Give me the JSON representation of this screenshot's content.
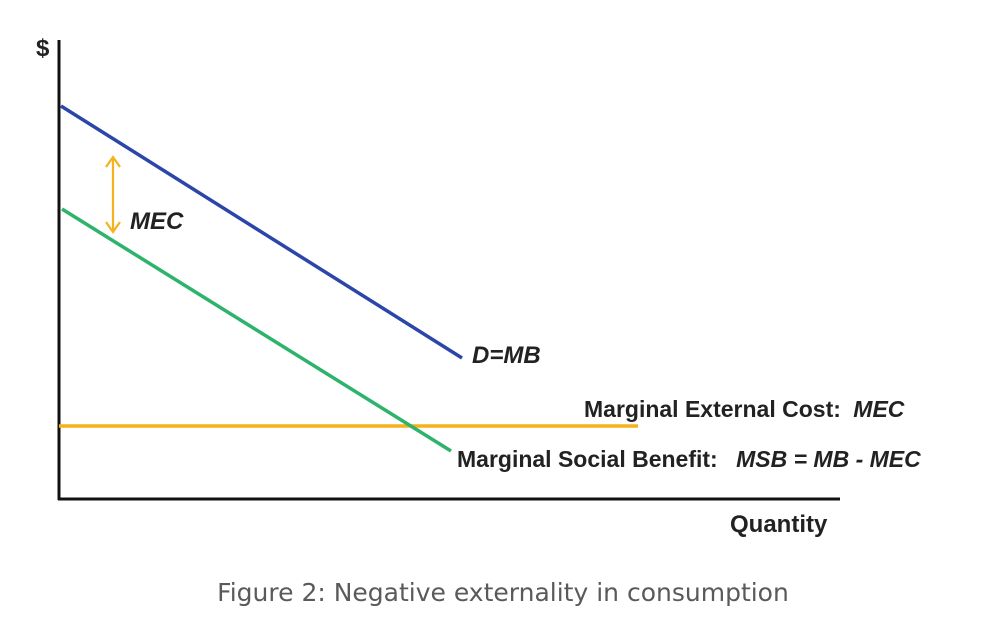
{
  "figure": {
    "y_axis_label": "$",
    "x_axis_label": "Quantity",
    "curves": {
      "demand": {
        "label": "D=MB",
        "color": "#2b46a8"
      },
      "msb": {
        "label_prefix": "Marginal Social Benefit:",
        "label_formula": "MSB = MB - MEC",
        "color": "#2db36b"
      },
      "mec_line": {
        "label_prefix": "Marginal External Cost:",
        "label_term": "MEC",
        "color": "#f5b21c"
      }
    },
    "gap_marker": {
      "label": "MEC",
      "color": "#f5b21c"
    },
    "caption": "Figure 2: Negative externality in consumption"
  }
}
